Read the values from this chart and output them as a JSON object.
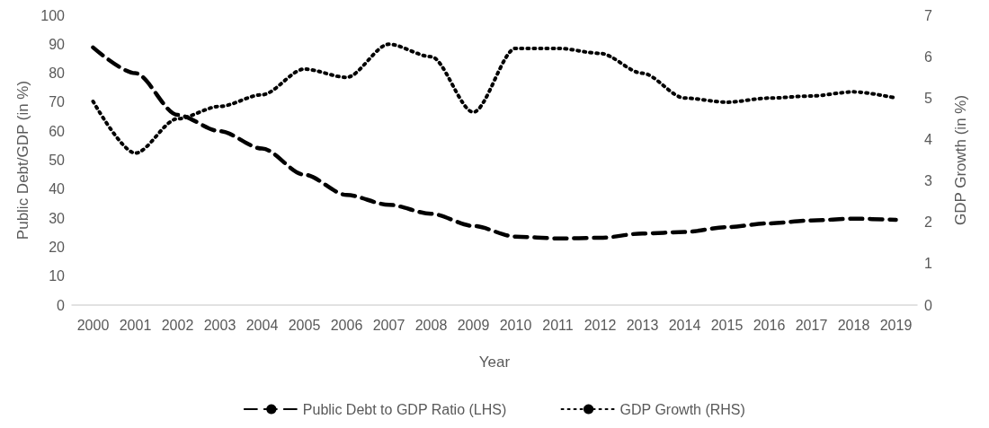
{
  "chart_data": {
    "type": "line",
    "xlabel": "Year",
    "ylabel": "Public Debt/GDP (in %)",
    "y2label": "GDP Growth (in %)",
    "categories": [
      "2000",
      "2001",
      "2002",
      "2003",
      "2004",
      "2005",
      "2006",
      "2007",
      "2008",
      "2009",
      "2010",
      "2011",
      "2012",
      "2013",
      "2014",
      "2015",
      "2016",
      "2017",
      "2018",
      "2019"
    ],
    "series": [
      {
        "name": "Public Debt to GDP Ratio (LHS)",
        "color": "#000000",
        "line_style": "dashed",
        "values": [
          88.9,
          80,
          65.6,
          60,
          54,
          45,
          38,
          34.6,
          31.5,
          27.3,
          23.6,
          23,
          23.2,
          24.7,
          25.2,
          26.9,
          28.2,
          29.2,
          29.8,
          29.4
        ]
      },
      {
        "name": "GDP Growth (RHS)",
        "color": "#000000",
        "line_style": "dotted",
        "axis": "y2",
        "values": [
          4.92,
          3.67,
          4.5,
          4.8,
          5.08,
          5.7,
          5.5,
          6.3,
          6.0,
          4.66,
          6.2,
          6.2,
          6.08,
          5.6,
          5.0,
          4.9,
          5.0,
          5.05,
          5.15,
          5.0
        ]
      }
    ],
    "ylim": [
      0,
      100
    ],
    "yticks": [
      0,
      10,
      20,
      30,
      40,
      50,
      60,
      70,
      80,
      90,
      100
    ],
    "y2lim": [
      0,
      7
    ],
    "y2ticks": [
      0,
      1,
      2,
      3,
      4,
      5,
      6,
      7
    ],
    "grid": false,
    "legend": "bottom",
    "marker": "none"
  }
}
